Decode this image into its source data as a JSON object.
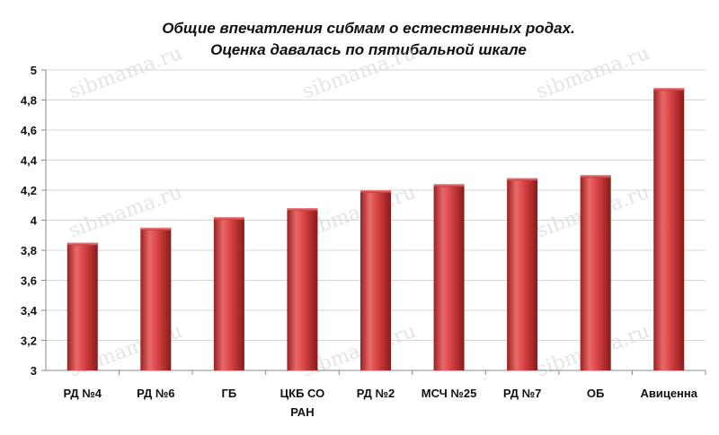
{
  "title": {
    "line1": "Общие впечатления  сибмам о естественных  родах.",
    "line2": "Оценка давалась по пятибальной шкале"
  },
  "watermark_text": "sibmama.ru",
  "colors": {
    "bar": "#cc3b3b",
    "bar_dark": "#8e1f1f",
    "bar_light": "#ea7070",
    "grid": "#d6d6d6",
    "axis": "#8a8a8a"
  },
  "chart_data": {
    "type": "bar",
    "title": "Общие впечатления  сибмам о естественных  родах. Оценка давалась по пятибальной шкале",
    "categories": [
      "РД №4",
      "РД №6",
      "ГБ",
      "ЦКБ СО РАН",
      "РД №2",
      "МСЧ №25",
      "РД №7",
      "ОБ",
      "Авиценна"
    ],
    "category_lines": [
      [
        "РД №4"
      ],
      [
        "РД №6"
      ],
      [
        "ГБ"
      ],
      [
        "ЦКБ СО",
        "РАН"
      ],
      [
        "РД №2"
      ],
      [
        "МСЧ №25"
      ],
      [
        "РД №7"
      ],
      [
        "ОБ"
      ],
      [
        "Авиценна"
      ]
    ],
    "values": [
      3.85,
      3.95,
      4.02,
      4.08,
      4.2,
      4.24,
      4.28,
      4.3,
      4.88
    ],
    "ylim": [
      3,
      5
    ],
    "yticks": [
      3,
      3.2,
      3.4,
      3.6,
      3.8,
      4,
      4.2,
      4.4,
      4.6,
      4.8,
      5
    ],
    "ytick_labels": [
      "3",
      "3,2",
      "3,4",
      "3,6",
      "3,8",
      "4",
      "4,2",
      "4,4",
      "4,6",
      "4,8",
      "5"
    ],
    "grid": true,
    "legend": "none",
    "xlabel": "",
    "ylabel": ""
  }
}
